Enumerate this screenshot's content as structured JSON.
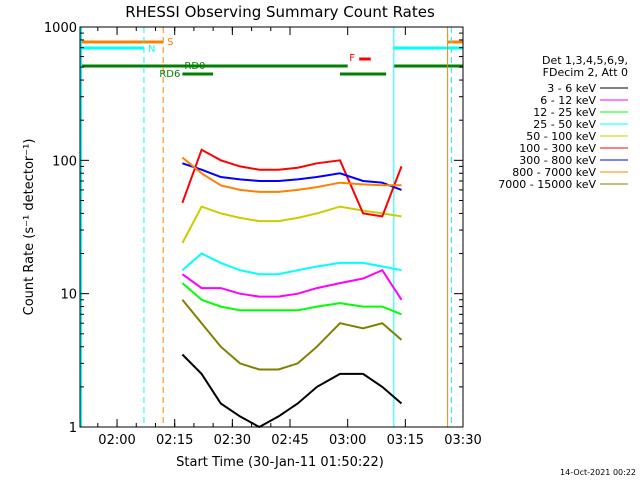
{
  "chart_data": {
    "type": "line",
    "title": "RHESSI Observing Summary Count Rates",
    "xlabel": "Start Time (30-Jan-11 01:50:22)",
    "ylabel": "Count Rate (s⁻¹ detector⁻¹)",
    "yscale": "log",
    "ylim": [
      1,
      1000
    ],
    "xlim": [
      "01:50:22",
      "03:30:00"
    ],
    "x_ticks": [
      "02:00",
      "02:15",
      "02:30",
      "02:45",
      "03:00",
      "03:15",
      "03:30"
    ],
    "y_ticks": [
      "1",
      "10",
      "100",
      "1000"
    ],
    "legend_header": [
      "Det 1,3,4,5,6,9,",
      "FDecim 2, Att 0"
    ],
    "legend_position": "right",
    "footer": "14-Oct-2021 00:22",
    "series": [
      {
        "name": "3 - 6 keV",
        "color": "#000000",
        "x": [
          "02:17",
          "02:22",
          "02:27",
          "02:32",
          "02:37",
          "02:42",
          "02:47",
          "02:52",
          "02:58",
          "03:04",
          "03:09",
          "03:14"
        ],
        "y": [
          3.5,
          2.5,
          1.5,
          1.2,
          1.0,
          1.2,
          1.5,
          2.0,
          2.5,
          2.5,
          2.0,
          1.5
        ]
      },
      {
        "name": "6 - 12 keV",
        "color": "#ff00ff",
        "x": [
          "02:17",
          "02:22",
          "02:27",
          "02:32",
          "02:37",
          "02:42",
          "02:47",
          "02:52",
          "02:58",
          "03:04",
          "03:09",
          "03:14"
        ],
        "y": [
          14,
          11,
          11,
          10,
          9.5,
          9.5,
          10,
          11,
          12,
          13,
          15,
          9
        ]
      },
      {
        "name": "12 - 25 keV",
        "color": "#00ff00",
        "x": [
          "02:17",
          "02:22",
          "02:27",
          "02:32",
          "02:37",
          "02:42",
          "02:47",
          "02:52",
          "02:58",
          "03:04",
          "03:09",
          "03:14"
        ],
        "y": [
          12,
          9,
          8,
          7.5,
          7.5,
          7.5,
          7.5,
          8,
          8.5,
          8,
          8,
          7
        ]
      },
      {
        "name": "25 - 50 keV",
        "color": "#00ffff",
        "x": [
          "02:17",
          "02:22",
          "02:27",
          "02:32",
          "02:37",
          "02:42",
          "02:47",
          "02:52",
          "02:58",
          "03:04",
          "03:09",
          "03:14"
        ],
        "y": [
          15,
          20,
          17,
          15,
          14,
          14,
          15,
          16,
          17,
          17,
          16,
          15
        ]
      },
      {
        "name": "50 - 100 keV",
        "color": "#cccc00",
        "x": [
          "02:17",
          "02:22",
          "02:27",
          "02:32",
          "02:37",
          "02:42",
          "02:47",
          "02:52",
          "02:58",
          "03:04",
          "03:09",
          "03:14"
        ],
        "y": [
          24,
          45,
          40,
          37,
          35,
          35,
          37,
          40,
          45,
          42,
          40,
          38
        ]
      },
      {
        "name": "100 - 300 keV",
        "color": "#ff0000",
        "x": [
          "02:17",
          "02:22",
          "02:27",
          "02:32",
          "02:37",
          "02:42",
          "02:47",
          "02:52",
          "02:58",
          "03:04",
          "03:09",
          "03:14"
        ],
        "y": [
          48,
          120,
          100,
          90,
          85,
          85,
          88,
          95,
          100,
          40,
          38,
          90
        ]
      },
      {
        "name": "300 - 800 keV",
        "color": "#0000ff",
        "x": [
          "02:17",
          "02:22",
          "02:27",
          "02:32",
          "02:37",
          "02:42",
          "02:47",
          "02:52",
          "02:58",
          "03:04",
          "03:09",
          "03:14"
        ],
        "y": [
          95,
          85,
          75,
          72,
          70,
          70,
          72,
          75,
          80,
          70,
          68,
          60
        ]
      },
      {
        "name": "800 - 7000 keV",
        "color": "#ff8000",
        "x": [
          "02:17",
          "02:22",
          "02:27",
          "02:32",
          "02:37",
          "02:42",
          "02:47",
          "02:52",
          "02:58",
          "03:04",
          "03:09",
          "03:14"
        ],
        "y": [
          105,
          80,
          65,
          60,
          58,
          58,
          60,
          63,
          68,
          66,
          65,
          65
        ]
      },
      {
        "name": "7000 - 15000 keV",
        "color": "#808000",
        "x": [
          "02:17",
          "02:22",
          "02:27",
          "02:32",
          "02:37",
          "02:42",
          "02:47",
          "02:52",
          "02:58",
          "03:04",
          "03:09",
          "03:14"
        ],
        "y": [
          9,
          6,
          4,
          3,
          2.7,
          2.7,
          3,
          4,
          6,
          5.5,
          6,
          4.5
        ]
      }
    ],
    "flag_labels": [
      {
        "label": "S",
        "color": "#ff8000"
      },
      {
        "label": "N",
        "color": "#00ffff"
      },
      {
        "label": "RD0",
        "color": "#008000"
      },
      {
        "label": "RD6",
        "color": "#008000"
      },
      {
        "label": "F",
        "color": "#ff0000"
      }
    ]
  }
}
